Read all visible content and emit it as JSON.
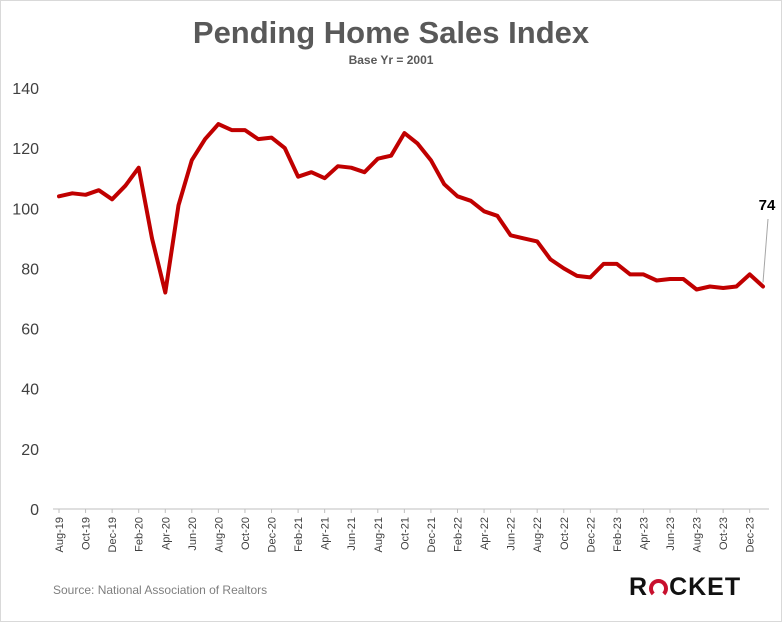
{
  "colors": {
    "line": "#c00000",
    "text": "#595959",
    "logo_accent": "#c8102e"
  },
  "logo": {
    "pre": "R",
    "icon": "o-arc-icon",
    "post": "CKET"
  },
  "source": "Source: National Association of Realtors",
  "chart_data": {
    "type": "line",
    "title": "Pending Home Sales Index",
    "subtitle": "Base Yr = 2001",
    "xlabel": "",
    "ylabel": "",
    "ylim": [
      0,
      140
    ],
    "yticks": [
      0,
      20,
      40,
      60,
      80,
      100,
      120,
      140
    ],
    "grid": false,
    "x": [
      "Aug-19",
      "Sep-19",
      "Oct-19",
      "Nov-19",
      "Dec-19",
      "Jan-20",
      "Feb-20",
      "Mar-20",
      "Apr-20",
      "May-20",
      "Jun-20",
      "Jul-20",
      "Aug-20",
      "Sep-20",
      "Oct-20",
      "Nov-20",
      "Dec-20",
      "Jan-21",
      "Feb-21",
      "Mar-21",
      "Apr-21",
      "May-21",
      "Jun-21",
      "Jul-21",
      "Aug-21",
      "Sep-21",
      "Oct-21",
      "Nov-21",
      "Dec-21",
      "Jan-22",
      "Feb-22",
      "Mar-22",
      "Apr-22",
      "May-22",
      "Jun-22",
      "Jul-22",
      "Aug-22",
      "Sep-22",
      "Oct-22",
      "Nov-22",
      "Dec-22",
      "Jan-23",
      "Feb-23",
      "Mar-23",
      "Apr-23",
      "May-23",
      "Jun-23",
      "Jul-23",
      "Aug-23",
      "Sep-23",
      "Oct-23",
      "Nov-23",
      "Dec-23",
      "Jan-24"
    ],
    "tick_labels": [
      "Aug-19",
      "Oct-19",
      "Dec-19",
      "Feb-20",
      "Apr-20",
      "Jun-20",
      "Aug-20",
      "Oct-20",
      "Dec-20",
      "Feb-21",
      "Apr-21",
      "Jun-21",
      "Aug-21",
      "Oct-21",
      "Dec-21",
      "Feb-22",
      "Apr-22",
      "Jun-22",
      "Aug-22",
      "Oct-22",
      "Dec-22",
      "Feb-23",
      "Apr-23",
      "Jun-23",
      "Aug-23",
      "Oct-23",
      "Dec-23"
    ],
    "series": [
      {
        "values": [
          104,
          105,
          104.5,
          106,
          103,
          107.5,
          113.5,
          90,
          72,
          101,
          116,
          123,
          128,
          126,
          126,
          123,
          123.5,
          120,
          110.5,
          112,
          110,
          114,
          113.5,
          112,
          116.5,
          117.5,
          125,
          121.5,
          116,
          108,
          104,
          102.5,
          99,
          97.5,
          91,
          90,
          89,
          83,
          80,
          77.5,
          77,
          81.5,
          81.5,
          78,
          78,
          76,
          76.5,
          76.5,
          73,
          74,
          73.5,
          74,
          78,
          74
        ]
      }
    ],
    "annotation": {
      "label": "74"
    }
  }
}
